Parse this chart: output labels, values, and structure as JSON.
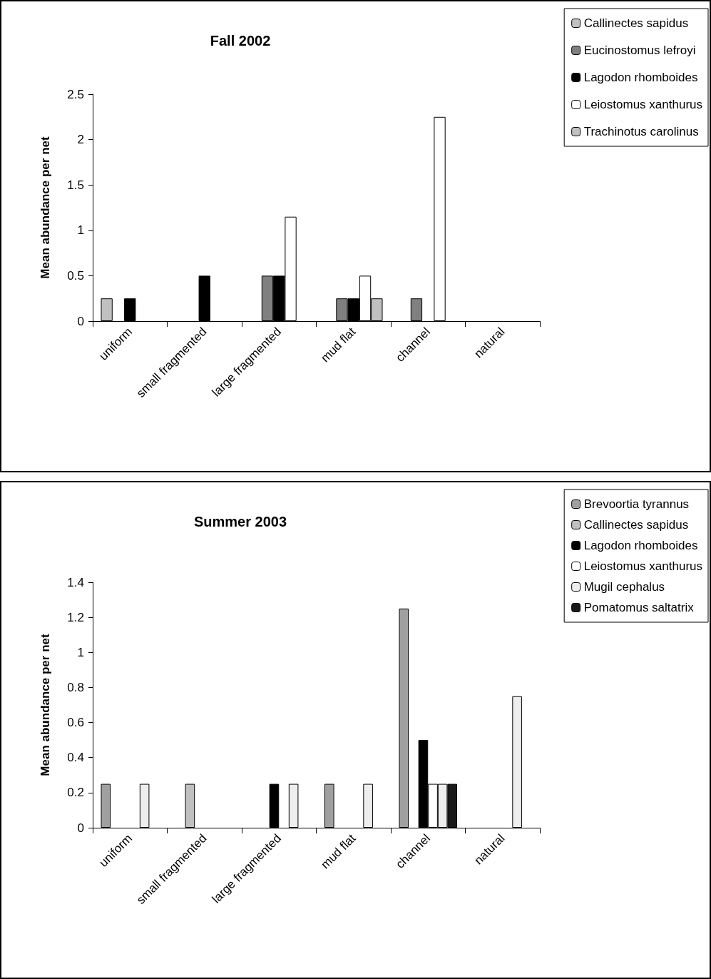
{
  "chart_data": [
    {
      "type": "bar",
      "title": "Fall 2002",
      "ylabel": "Mean abundance per net",
      "categories": [
        "uniform",
        "small fragmented",
        "large fragmented",
        "mud flat",
        "channel",
        "natural"
      ],
      "series": [
        {
          "name": "Callinectes sapidus",
          "color": "#c0c0c0",
          "values": [
            0.25,
            null,
            null,
            null,
            null,
            null
          ]
        },
        {
          "name": "Eucinostomus lefroyi",
          "color": "#808080",
          "values": [
            null,
            null,
            0.5,
            0.25,
            0.25,
            null
          ]
        },
        {
          "name": "Lagodon rhomboides",
          "color": "#000000",
          "values": [
            0.25,
            0.5,
            0.5,
            0.25,
            null,
            null
          ]
        },
        {
          "name": "Leiostomus xanthurus",
          "color": "#ffffff",
          "values": [
            null,
            null,
            1.15,
            0.5,
            2.25,
            null
          ]
        },
        {
          "name": "Trachinotus carolinus",
          "color": "#c0c0c0",
          "values": [
            null,
            null,
            null,
            0.25,
            null,
            null
          ]
        }
      ],
      "ylim": [
        0,
        2.5
      ],
      "yticks": [
        0,
        0.5,
        1,
        1.5,
        2,
        2.5
      ],
      "grid": false,
      "legend": "top right"
    },
    {
      "type": "bar",
      "title": "Summer 2003",
      "ylabel": "Mean abundance per net",
      "categories": [
        "uniform",
        "small fragmented",
        "large fragmented",
        "mud flat",
        "channel",
        "natural"
      ],
      "series": [
        {
          "name": "Brevoortia tyrannus",
          "color": "#a0a0a0",
          "values": [
            0.25,
            null,
            null,
            0.25,
            1.25,
            null
          ]
        },
        {
          "name": "Callinectes sapidus",
          "color": "#c0c0c0",
          "values": [
            null,
            0.25,
            null,
            null,
            null,
            null
          ]
        },
        {
          "name": "Lagodon rhomboides",
          "color": "#000000",
          "values": [
            null,
            null,
            0.25,
            null,
            0.5,
            null
          ]
        },
        {
          "name": "Leiostomus xanthurus",
          "color": "#ffffff",
          "values": [
            null,
            null,
            null,
            null,
            0.25,
            null
          ]
        },
        {
          "name": "Mugil cephalus",
          "color": "#eeeeee",
          "values": [
            0.25,
            null,
            0.25,
            0.25,
            0.25,
            0.75
          ]
        },
        {
          "name": "Pomatomus saltatrix",
          "color": "#1a1a1a",
          "values": [
            null,
            null,
            null,
            null,
            0.25,
            null
          ]
        }
      ],
      "ylim": [
        0,
        1.4
      ],
      "yticks": [
        0,
        0.2,
        0.4,
        0.6,
        0.8,
        1,
        1.2,
        1.4
      ],
      "grid": false,
      "legend": "top right"
    }
  ]
}
